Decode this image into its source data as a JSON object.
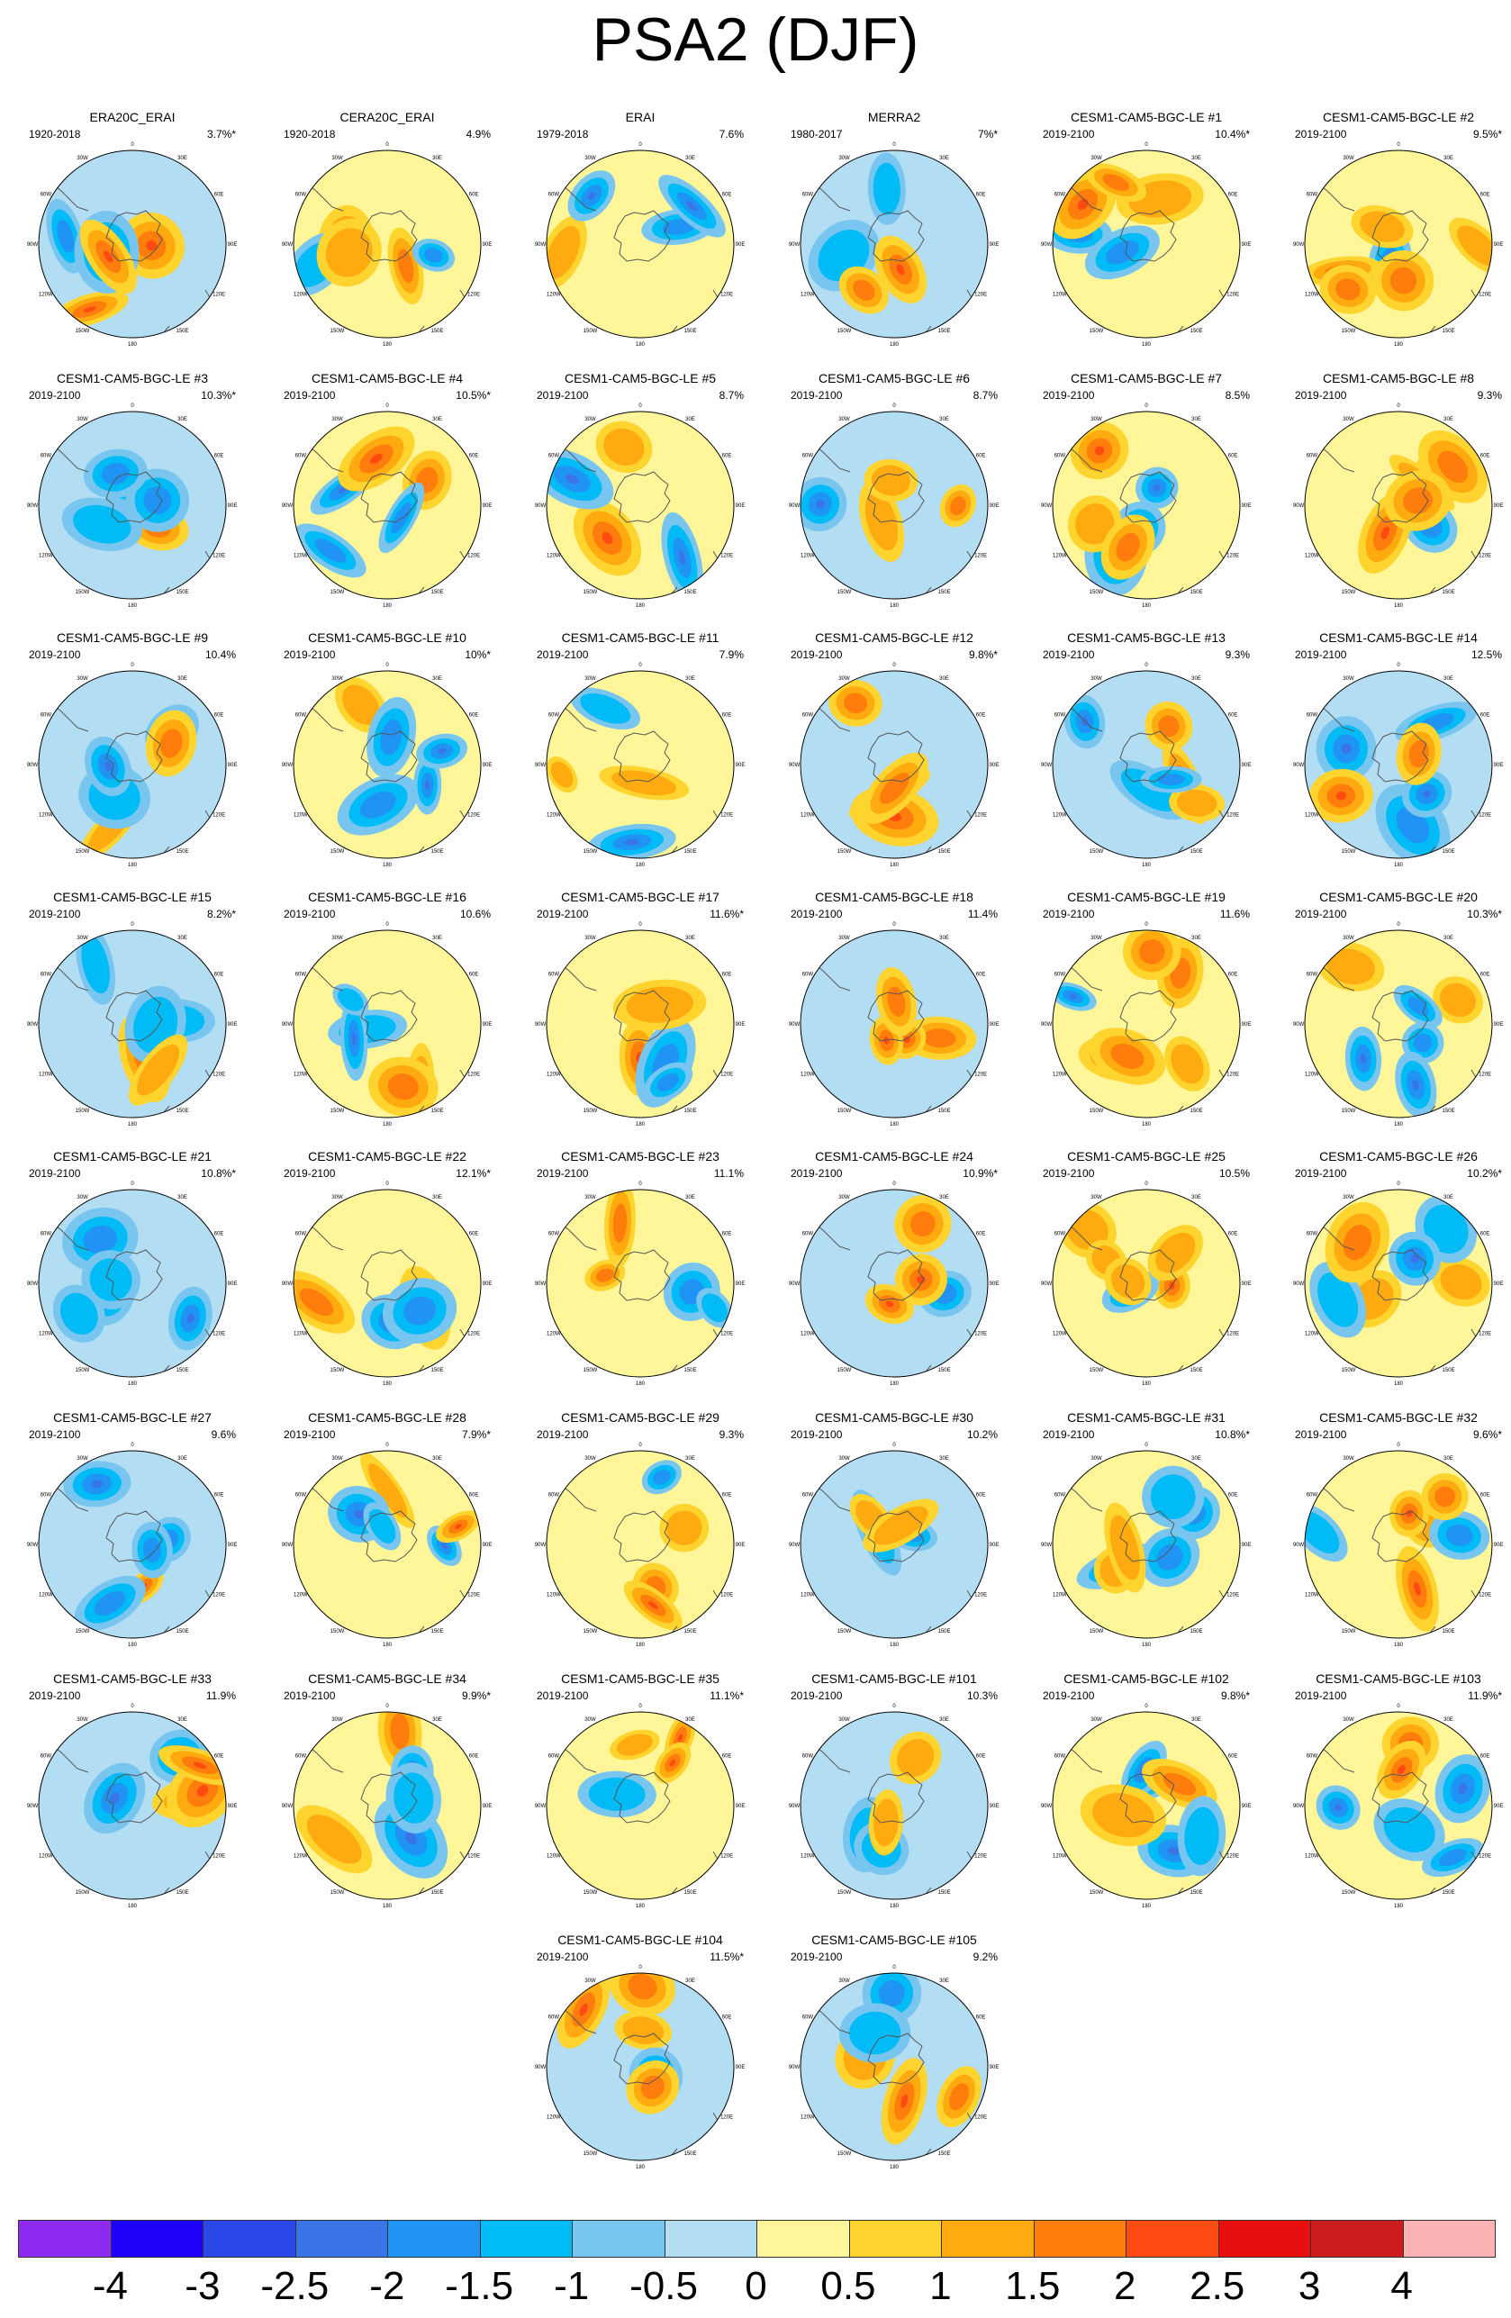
{
  "title": "PSA2 (DJF)",
  "lon_labels": [
    "0",
    "30E",
    "60E",
    "90E",
    "120E",
    "150E",
    "180",
    "150W",
    "120W",
    "90W",
    "60W",
    "30W"
  ],
  "colors": [
    "#8e2bf0",
    "#1e00f8",
    "#2a48e8",
    "#3a74e6",
    "#1f94f4",
    "#00bbf5",
    "#78c6f0",
    "#b3ddf3",
    "#fff69a",
    "#ffd42e",
    "#ffab10",
    "#ff7d0c",
    "#ff4b12",
    "#e8100e",
    "#cc1c1c",
    "#fbb3b3"
  ],
  "colorbar_labels": [
    "-4",
    "-3",
    "-2.5",
    "-2",
    "-1.5",
    "-1",
    "-0.5",
    "0",
    "0.5",
    "1",
    "1.5",
    "2",
    "2.5",
    "3",
    "4"
  ],
  "panels": [
    {
      "title": "ERA20C_ERAI",
      "years": "1920-2018",
      "pct": "3.7%*"
    },
    {
      "title": "CERA20C_ERAI",
      "years": "1920-2018",
      "pct": "4.9%"
    },
    {
      "title": "ERAI",
      "years": "1979-2018",
      "pct": "7.6%"
    },
    {
      "title": "MERRA2",
      "years": "1980-2017",
      "pct": "7%*"
    },
    {
      "title": "CESM1-CAM5-BGC-LE #1",
      "years": "2019-2100",
      "pct": "10.4%*"
    },
    {
      "title": "CESM1-CAM5-BGC-LE #2",
      "years": "2019-2100",
      "pct": "9.5%*"
    },
    {
      "title": "CESM1-CAM5-BGC-LE #3",
      "years": "2019-2100",
      "pct": "10.3%*"
    },
    {
      "title": "CESM1-CAM5-BGC-LE #4",
      "years": "2019-2100",
      "pct": "10.5%*"
    },
    {
      "title": "CESM1-CAM5-BGC-LE #5",
      "years": "2019-2100",
      "pct": "8.7%"
    },
    {
      "title": "CESM1-CAM5-BGC-LE #6",
      "years": "2019-2100",
      "pct": "8.7%"
    },
    {
      "title": "CESM1-CAM5-BGC-LE #7",
      "years": "2019-2100",
      "pct": "8.5%"
    },
    {
      "title": "CESM1-CAM5-BGC-LE #8",
      "years": "2019-2100",
      "pct": "9.3%"
    },
    {
      "title": "CESM1-CAM5-BGC-LE #9",
      "years": "2019-2100",
      "pct": "10.4%"
    },
    {
      "title": "CESM1-CAM5-BGC-LE #10",
      "years": "2019-2100",
      "pct": "10%*"
    },
    {
      "title": "CESM1-CAM5-BGC-LE #11",
      "years": "2019-2100",
      "pct": "7.9%"
    },
    {
      "title": "CESM1-CAM5-BGC-LE #12",
      "years": "2019-2100",
      "pct": "9.8%*"
    },
    {
      "title": "CESM1-CAM5-BGC-LE #13",
      "years": "2019-2100",
      "pct": "9.3%"
    },
    {
      "title": "CESM1-CAM5-BGC-LE #14",
      "years": "2019-2100",
      "pct": "12.5%"
    },
    {
      "title": "CESM1-CAM5-BGC-LE #15",
      "years": "2019-2100",
      "pct": "8.2%*"
    },
    {
      "title": "CESM1-CAM5-BGC-LE #16",
      "years": "2019-2100",
      "pct": "10.6%"
    },
    {
      "title": "CESM1-CAM5-BGC-LE #17",
      "years": "2019-2100",
      "pct": "11.6%*"
    },
    {
      "title": "CESM1-CAM5-BGC-LE #18",
      "years": "2019-2100",
      "pct": "11.4%"
    },
    {
      "title": "CESM1-CAM5-BGC-LE #19",
      "years": "2019-2100",
      "pct": "11.6%"
    },
    {
      "title": "CESM1-CAM5-BGC-LE #20",
      "years": "2019-2100",
      "pct": "10.3%*"
    },
    {
      "title": "CESM1-CAM5-BGC-LE #21",
      "years": "2019-2100",
      "pct": "10.8%*"
    },
    {
      "title": "CESM1-CAM5-BGC-LE #22",
      "years": "2019-2100",
      "pct": "12.1%*"
    },
    {
      "title": "CESM1-CAM5-BGC-LE #23",
      "years": "2019-2100",
      "pct": "11.1%"
    },
    {
      "title": "CESM1-CAM5-BGC-LE #24",
      "years": "2019-2100",
      "pct": "10.9%*"
    },
    {
      "title": "CESM1-CAM5-BGC-LE #25",
      "years": "2019-2100",
      "pct": "10.5%"
    },
    {
      "title": "CESM1-CAM5-BGC-LE #26",
      "years": "2019-2100",
      "pct": "10.2%*"
    },
    {
      "title": "CESM1-CAM5-BGC-LE #27",
      "years": "2019-2100",
      "pct": "9.6%"
    },
    {
      "title": "CESM1-CAM5-BGC-LE #28",
      "years": "2019-2100",
      "pct": "7.9%*"
    },
    {
      "title": "CESM1-CAM5-BGC-LE #29",
      "years": "2019-2100",
      "pct": "9.3%"
    },
    {
      "title": "CESM1-CAM5-BGC-LE #30",
      "years": "2019-2100",
      "pct": "10.2%"
    },
    {
      "title": "CESM1-CAM5-BGC-LE #31",
      "years": "2019-2100",
      "pct": "10.8%*"
    },
    {
      "title": "CESM1-CAM5-BGC-LE #32",
      "years": "2019-2100",
      "pct": "9.6%*"
    },
    {
      "title": "CESM1-CAM5-BGC-LE #33",
      "years": "2019-2100",
      "pct": "11.9%"
    },
    {
      "title": "CESM1-CAM5-BGC-LE #34",
      "years": "2019-2100",
      "pct": "9.9%*"
    },
    {
      "title": "CESM1-CAM5-BGC-LE #35",
      "years": "2019-2100",
      "pct": "11.1%*"
    },
    {
      "title": "CESM1-CAM5-BGC-LE #101",
      "years": "2019-2100",
      "pct": "10.3%"
    },
    {
      "title": "CESM1-CAM5-BGC-LE #102",
      "years": "2019-2100",
      "pct": "9.8%*"
    },
    {
      "title": "CESM1-CAM5-BGC-LE #103",
      "years": "2019-2100",
      "pct": "11.9%*"
    },
    {
      "title": "CESM1-CAM5-BGC-LE #104",
      "years": "2019-2100",
      "pct": "11.5%*"
    },
    {
      "title": "CESM1-CAM5-BGC-LE #105",
      "years": "2019-2100",
      "pct": "9.2%"
    }
  ]
}
